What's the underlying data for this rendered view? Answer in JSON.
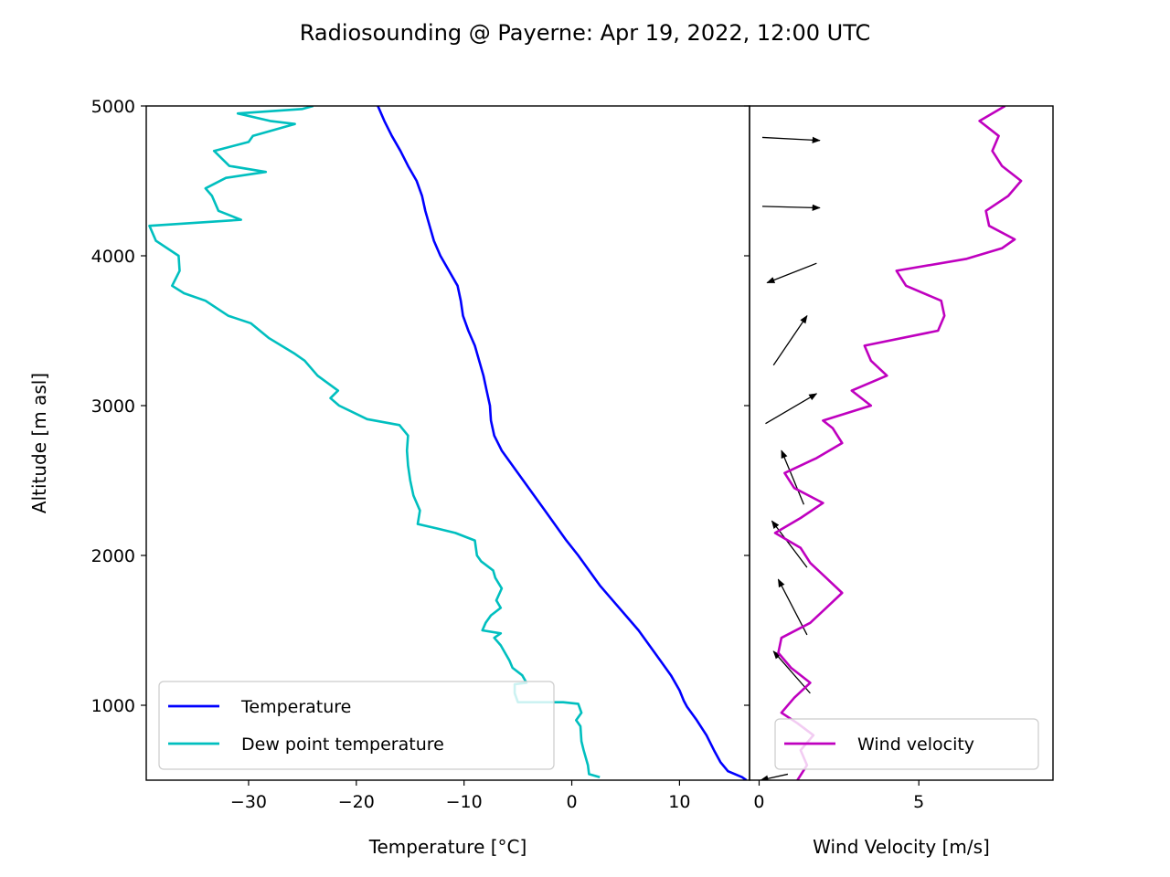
{
  "chart_data": {
    "title": "Radiosounding @ Payerne: Apr 19, 2022, 12:00 UTC",
    "ylabel": "Altitude [m asl]",
    "ylim": [
      500,
      5000
    ],
    "yticks": [
      1000,
      2000,
      3000,
      4000,
      5000
    ],
    "grid": false,
    "panels": [
      {
        "type": "line",
        "xlabel": "Temperature [°C]",
        "xlim": [
          -39.5,
          16.5
        ],
        "xticks": [
          -30,
          -20,
          -10,
          0,
          10
        ],
        "xtick_labels": [
          "−30",
          "−20",
          "−10",
          "0",
          "10"
        ],
        "legend_position": "lower-left",
        "series": [
          {
            "name": "Temperature",
            "color": "#0000ff",
            "points": [
              [
                16.2,
                500
              ],
              [
                15.8,
                520
              ],
              [
                14.5,
                560
              ],
              [
                13.8,
                620
              ],
              [
                13.2,
                700
              ],
              [
                12.5,
                800
              ],
              [
                11.6,
                900
              ],
              [
                10.7,
                990
              ],
              [
                10.4,
                1030
              ],
              [
                10.0,
                1100
              ],
              [
                9.2,
                1200
              ],
              [
                8.2,
                1300
              ],
              [
                7.2,
                1400
              ],
              [
                6.2,
                1500
              ],
              [
                5.0,
                1600
              ],
              [
                3.8,
                1700
              ],
              [
                2.6,
                1800
              ],
              [
                1.6,
                1900
              ],
              [
                0.6,
                2000
              ],
              [
                -0.5,
                2100
              ],
              [
                -1.5,
                2200
              ],
              [
                -2.5,
                2300
              ],
              [
                -3.5,
                2400
              ],
              [
                -4.5,
                2500
              ],
              [
                -5.5,
                2600
              ],
              [
                -6.5,
                2700
              ],
              [
                -7.2,
                2800
              ],
              [
                -7.5,
                2900
              ],
              [
                -7.6,
                3000
              ],
              [
                -7.9,
                3100
              ],
              [
                -8.2,
                3200
              ],
              [
                -8.6,
                3300
              ],
              [
                -9.0,
                3400
              ],
              [
                -9.6,
                3500
              ],
              [
                -10.1,
                3600
              ],
              [
                -10.3,
                3700
              ],
              [
                -10.6,
                3800
              ],
              [
                -11.4,
                3900
              ],
              [
                -12.2,
                4000
              ],
              [
                -12.8,
                4100
              ],
              [
                -13.2,
                4200
              ],
              [
                -13.6,
                4300
              ],
              [
                -13.9,
                4400
              ],
              [
                -14.4,
                4500
              ],
              [
                -15.2,
                4600
              ],
              [
                -15.9,
                4700
              ],
              [
                -16.7,
                4800
              ],
              [
                -17.4,
                4900
              ],
              [
                -18.0,
                5000
              ]
            ]
          },
          {
            "name": "Dew point temperature",
            "color": "#00bfbf",
            "points": [
              [
                2.6,
                520
              ],
              [
                1.6,
                540
              ],
              [
                1.5,
                600
              ],
              [
                1.1,
                700
              ],
              [
                0.9,
                760
              ],
              [
                0.8,
                860
              ],
              [
                0.4,
                900
              ],
              [
                0.9,
                950
              ],
              [
                0.6,
                1010
              ],
              [
                -0.8,
                1020
              ],
              [
                -5.0,
                1020
              ],
              [
                -5.3,
                1080
              ],
              [
                -5.3,
                1140
              ],
              [
                -4.2,
                1150
              ],
              [
                -4.6,
                1200
              ],
              [
                -5.5,
                1250
              ],
              [
                -5.8,
                1300
              ],
              [
                -6.2,
                1350
              ],
              [
                -6.6,
                1400
              ],
              [
                -7.2,
                1450
              ],
              [
                -6.6,
                1480
              ],
              [
                -8.3,
                1500
              ],
              [
                -8.0,
                1550
              ],
              [
                -7.5,
                1600
              ],
              [
                -6.6,
                1650
              ],
              [
                -7.0,
                1700
              ],
              [
                -6.5,
                1780
              ],
              [
                -7.1,
                1850
              ],
              [
                -7.3,
                1900
              ],
              [
                -8.4,
                1960
              ],
              [
                -8.8,
                2000
              ],
              [
                -9.0,
                2100
              ],
              [
                -10.8,
                2150
              ],
              [
                -12.5,
                2180
              ],
              [
                -14.3,
                2210
              ],
              [
                -14.1,
                2300
              ],
              [
                -14.7,
                2400
              ],
              [
                -15.0,
                2500
              ],
              [
                -15.2,
                2600
              ],
              [
                -15.3,
                2700
              ],
              [
                -15.2,
                2800
              ],
              [
                -16.0,
                2870
              ],
              [
                -19.0,
                2910
              ],
              [
                -21.6,
                3000
              ],
              [
                -22.4,
                3050
              ],
              [
                -21.7,
                3100
              ],
              [
                -23.6,
                3200
              ],
              [
                -24.8,
                3300
              ],
              [
                -25.8,
                3350
              ],
              [
                -28.1,
                3450
              ],
              [
                -29.8,
                3550
              ],
              [
                -31.9,
                3600
              ],
              [
                -34.0,
                3700
              ],
              [
                -36.0,
                3750
              ],
              [
                -37.1,
                3800
              ],
              [
                -36.4,
                3900
              ],
              [
                -36.5,
                4000
              ],
              [
                -38.6,
                4100
              ],
              [
                -39.2,
                4200
              ],
              [
                -30.7,
                4240
              ],
              [
                -32.8,
                4300
              ],
              [
                -33.4,
                4400
              ],
              [
                -34.0,
                4450
              ],
              [
                -32.1,
                4520
              ],
              [
                -28.4,
                4560
              ],
              [
                -31.8,
                4600
              ],
              [
                -33.2,
                4700
              ],
              [
                -30.0,
                4760
              ],
              [
                -29.6,
                4800
              ],
              [
                -25.7,
                4880
              ],
              [
                -28.0,
                4900
              ],
              [
                -31.0,
                4950
              ],
              [
                -25.0,
                4980
              ],
              [
                -24.0,
                5000
              ]
            ]
          }
        ]
      },
      {
        "type": "line",
        "xlabel": "Wind Velocity [m/s]",
        "xlim": [
          -0.3,
          9.2
        ],
        "xticks": [
          0,
          5
        ],
        "xtick_labels": [
          "0",
          "5"
        ],
        "legend_position": "lower-right",
        "series": [
          {
            "name": "Wind velocity",
            "color": "#bf00bf",
            "points": [
              [
                1.2,
                500
              ],
              [
                1.5,
                600
              ],
              [
                1.3,
                700
              ],
              [
                1.7,
                800
              ],
              [
                1.2,
                880
              ],
              [
                0.7,
                950
              ],
              [
                1.1,
                1050
              ],
              [
                1.6,
                1150
              ],
              [
                1.0,
                1250
              ],
              [
                0.6,
                1350
              ],
              [
                0.7,
                1450
              ],
              [
                1.6,
                1550
              ],
              [
                2.1,
                1650
              ],
              [
                2.6,
                1750
              ],
              [
                2.1,
                1850
              ],
              [
                1.6,
                1950
              ],
              [
                1.3,
                2050
              ],
              [
                0.5,
                2150
              ],
              [
                1.3,
                2250
              ],
              [
                2.0,
                2350
              ],
              [
                1.1,
                2450
              ],
              [
                0.8,
                2550
              ],
              [
                1.8,
                2650
              ],
              [
                2.6,
                2750
              ],
              [
                2.3,
                2850
              ],
              [
                2.0,
                2900
              ],
              [
                3.5,
                3000
              ],
              [
                2.9,
                3100
              ],
              [
                4.0,
                3200
              ],
              [
                3.5,
                3300
              ],
              [
                3.3,
                3400
              ],
              [
                5.6,
                3500
              ],
              [
                5.8,
                3600
              ],
              [
                5.7,
                3700
              ],
              [
                4.6,
                3800
              ],
              [
                4.3,
                3900
              ],
              [
                6.5,
                3980
              ],
              [
                7.6,
                4050
              ],
              [
                8.0,
                4110
              ],
              [
                7.2,
                4200
              ],
              [
                7.1,
                4300
              ],
              [
                7.8,
                4400
              ],
              [
                8.2,
                4500
              ],
              [
                7.6,
                4600
              ],
              [
                7.3,
                4700
              ],
              [
                7.5,
                4800
              ],
              [
                6.9,
                4900
              ],
              [
                7.7,
                5000
              ]
            ]
          }
        ],
        "wind_arrows": [
          {
            "x0": 0.9,
            "y0": 540,
            "x1": 0.05,
            "y1": 500
          },
          {
            "x0": 1.6,
            "y0": 1080,
            "x1": 0.45,
            "y1": 1360
          },
          {
            "x0": 1.5,
            "y0": 1470,
            "x1": 0.6,
            "y1": 1840
          },
          {
            "x0": 1.5,
            "y0": 1920,
            "x1": 0.4,
            "y1": 2230
          },
          {
            "x0": 1.4,
            "y0": 2340,
            "x1": 0.7,
            "y1": 2700
          },
          {
            "x0": 0.2,
            "y0": 2880,
            "x1": 1.8,
            "y1": 3080
          },
          {
            "x0": 0.45,
            "y0": 3270,
            "x1": 1.5,
            "y1": 3600
          },
          {
            "x0": 1.8,
            "y0": 3950,
            "x1": 0.25,
            "y1": 3820
          },
          {
            "x0": 0.1,
            "y0": 4330,
            "x1": 1.9,
            "y1": 4320
          },
          {
            "x0": 0.1,
            "y0": 4790,
            "x1": 1.9,
            "y1": 4770
          }
        ]
      }
    ]
  }
}
